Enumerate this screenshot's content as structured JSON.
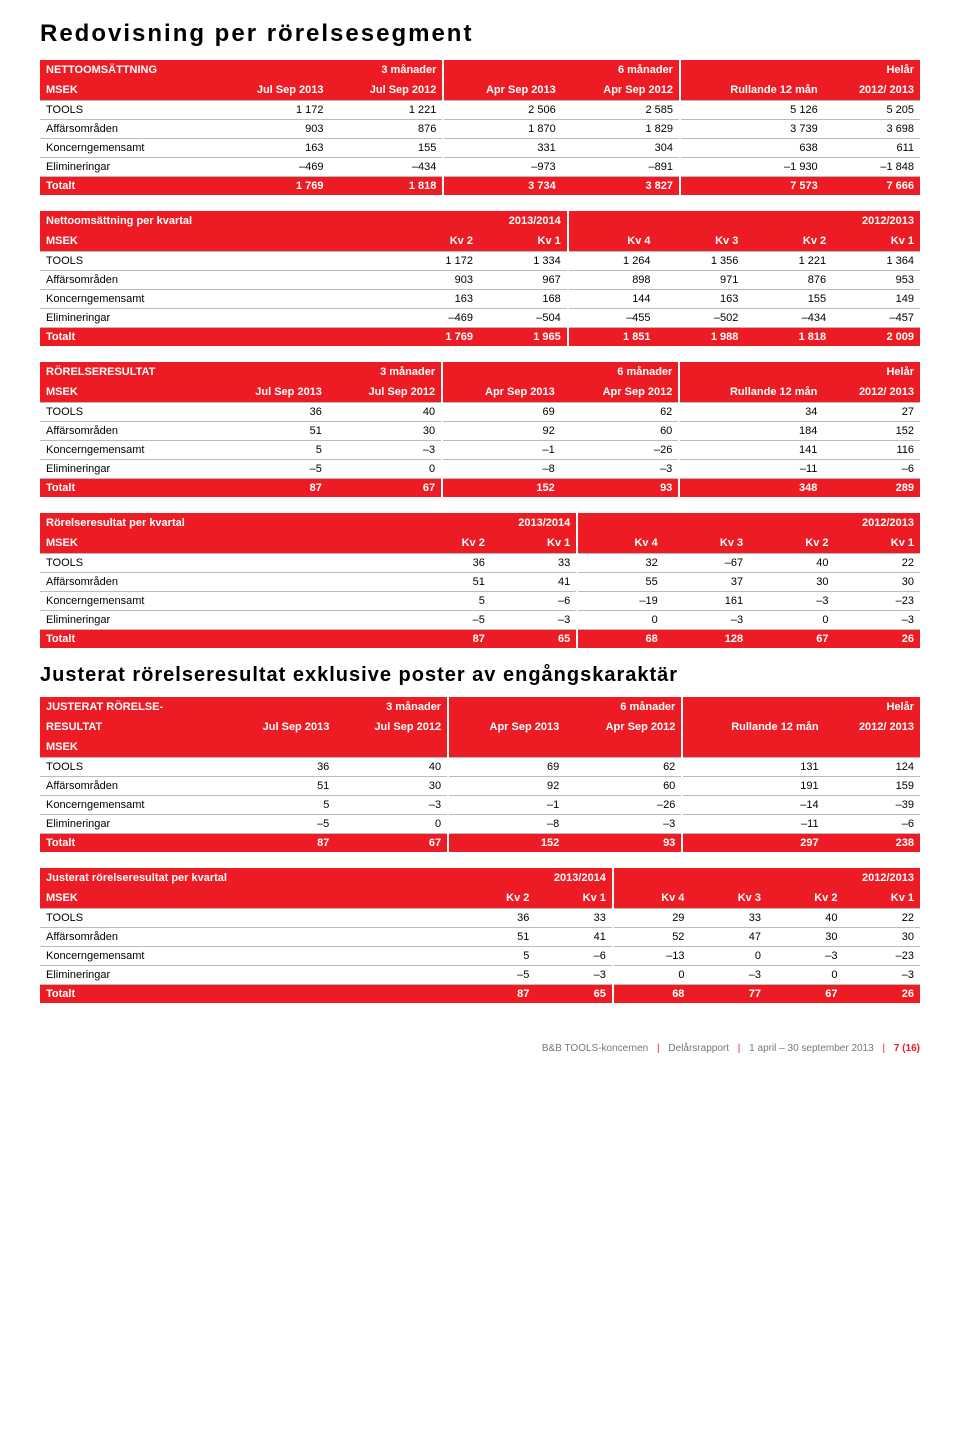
{
  "colors": {
    "accent": "#ed1c24",
    "text": "#000000",
    "bg": "#ffffff",
    "grid": "#bbbbbb"
  },
  "typography": {
    "family": "Verdana",
    "title_size": 24,
    "subtitle_size": 20,
    "table_size": 11
  },
  "titles": {
    "main": "Redovisning per rörelsesegment",
    "sub": "Justerat rörelseresultat exklusive poster av engångskaraktär"
  },
  "footer": {
    "company": "B&B TOOLS-koncernen",
    "doc": "Delårsrapport",
    "period": "1 april – 30 september 2013",
    "page": "7 (16)"
  },
  "tables": {
    "t1": {
      "head1": [
        "NETTOOMSÄTTNING",
        "3 månader",
        "",
        "6 månader",
        "",
        "Helår",
        ""
      ],
      "head2": [
        "MSEK",
        "Jul Sep 2013",
        "Jul Sep 2012",
        "Apr Sep 2013",
        "Apr Sep 2012",
        "Rullande 12 mån",
        "2012/ 2013"
      ],
      "rows": [
        [
          "TOOLS",
          "1 172",
          "1 221",
          "2 506",
          "2 585",
          "5 126",
          "5 205"
        ],
        [
          "Affärsområden",
          "903",
          "876",
          "1 870",
          "1 829",
          "3 739",
          "3 698"
        ],
        [
          "Koncerngemensamt",
          "163",
          "155",
          "331",
          "304",
          "638",
          "611"
        ],
        [
          "Elimineringar",
          "–469",
          "–434",
          "–973",
          "–891",
          "–1 930",
          "–1 848"
        ]
      ],
      "total": [
        "Totalt",
        "1 769",
        "1 818",
        "3 734",
        "3 827",
        "7 573",
        "7 666"
      ]
    },
    "t2": {
      "head1": [
        "Nettoomsättning per kvartal",
        "2013/2014",
        "",
        "",
        "2012/2013",
        "",
        ""
      ],
      "head2": [
        "MSEK",
        "Kv 2",
        "Kv 1",
        "Kv 4",
        "Kv 3",
        "Kv 2",
        "Kv 1"
      ],
      "rows": [
        [
          "TOOLS",
          "1 172",
          "1 334",
          "1 264",
          "1 356",
          "1 221",
          "1 364"
        ],
        [
          "Affärsområden",
          "903",
          "967",
          "898",
          "971",
          "876",
          "953"
        ],
        [
          "Koncerngemensamt",
          "163",
          "168",
          "144",
          "163",
          "155",
          "149"
        ],
        [
          "Elimineringar",
          "–469",
          "–504",
          "–455",
          "–502",
          "–434",
          "–457"
        ]
      ],
      "total": [
        "Totalt",
        "1 769",
        "1 965",
        "1 851",
        "1 988",
        "1 818",
        "2 009"
      ]
    },
    "t3": {
      "head1": [
        "RÖRELSERESULTAT",
        "3 månader",
        "",
        "6 månader",
        "",
        "Helår",
        ""
      ],
      "head2": [
        "MSEK",
        "Jul Sep 2013",
        "Jul Sep 2012",
        "Apr Sep 2013",
        "Apr Sep 2012",
        "Rullande 12 mån",
        "2012/ 2013"
      ],
      "rows": [
        [
          "TOOLS",
          "36",
          "40",
          "69",
          "62",
          "34",
          "27"
        ],
        [
          "Affärsområden",
          "51",
          "30",
          "92",
          "60",
          "184",
          "152"
        ],
        [
          "Koncerngemensamt",
          "5",
          "–3",
          "–1",
          "–26",
          "141",
          "116"
        ],
        [
          "Elimineringar",
          "–5",
          "0",
          "–8",
          "–3",
          "–11",
          "–6"
        ]
      ],
      "total": [
        "Totalt",
        "87",
        "67",
        "152",
        "93",
        "348",
        "289"
      ]
    },
    "t4": {
      "head1": [
        "Rörelseresultat per kvartal",
        "2013/2014",
        "",
        "",
        "2012/2013",
        "",
        ""
      ],
      "head2": [
        "MSEK",
        "Kv 2",
        "Kv 1",
        "Kv 4",
        "Kv 3",
        "Kv 2",
        "Kv 1"
      ],
      "rows": [
        [
          "TOOLS",
          "36",
          "33",
          "32",
          "–67",
          "40",
          "22"
        ],
        [
          "Affärsområden",
          "51",
          "41",
          "55",
          "37",
          "30",
          "30"
        ],
        [
          "Koncerngemensamt",
          "5",
          "–6",
          "–19",
          "161",
          "–3",
          "–23"
        ],
        [
          "Elimineringar",
          "–5",
          "–3",
          "0",
          "–3",
          "0",
          "–3"
        ]
      ],
      "total": [
        "Totalt",
        "87",
        "65",
        "68",
        "128",
        "67",
        "26"
      ]
    },
    "t5": {
      "head1": [
        "JUSTERAT RÖRELSE- RESULTAT MSEK",
        "3 månader",
        "",
        "6 månader",
        "",
        "Helår",
        ""
      ],
      "head2": [
        "",
        "Jul Sep 2013",
        "Jul Sep 2012",
        "Apr Sep 2013",
        "Apr Sep 2012",
        "Rullande 12 mån",
        "2012/ 2013"
      ],
      "label1a": "JUSTERAT RÖRELSE-",
      "label1b": "RESULTAT",
      "label1c": "MSEK",
      "rows": [
        [
          "TOOLS",
          "36",
          "40",
          "69",
          "62",
          "131",
          "124"
        ],
        [
          "Affärsområden",
          "51",
          "30",
          "92",
          "60",
          "191",
          "159"
        ],
        [
          "Koncerngemensamt",
          "5",
          "–3",
          "–1",
          "–26",
          "–14",
          "–39"
        ],
        [
          "Elimineringar",
          "–5",
          "0",
          "–8",
          "–3",
          "–11",
          "–6"
        ]
      ],
      "total": [
        "Totalt",
        "87",
        "67",
        "152",
        "93",
        "297",
        "238"
      ]
    },
    "t6": {
      "head1": [
        "Justerat rörelseresultat per kvartal",
        "2013/2014",
        "",
        "",
        "2012/2013",
        "",
        ""
      ],
      "head2": [
        "MSEK",
        "Kv 2",
        "Kv 1",
        "Kv 4",
        "Kv 3",
        "Kv 2",
        "Kv 1"
      ],
      "rows": [
        [
          "TOOLS",
          "36",
          "33",
          "29",
          "33",
          "40",
          "22"
        ],
        [
          "Affärsområden",
          "51",
          "41",
          "52",
          "47",
          "30",
          "30"
        ],
        [
          "Koncerngemensamt",
          "5",
          "–6",
          "–13",
          "0",
          "–3",
          "–23"
        ],
        [
          "Elimineringar",
          "–5",
          "–3",
          "0",
          "–3",
          "0",
          "–3"
        ]
      ],
      "total": [
        "Totalt",
        "87",
        "65",
        "68",
        "77",
        "67",
        "26"
      ]
    }
  }
}
